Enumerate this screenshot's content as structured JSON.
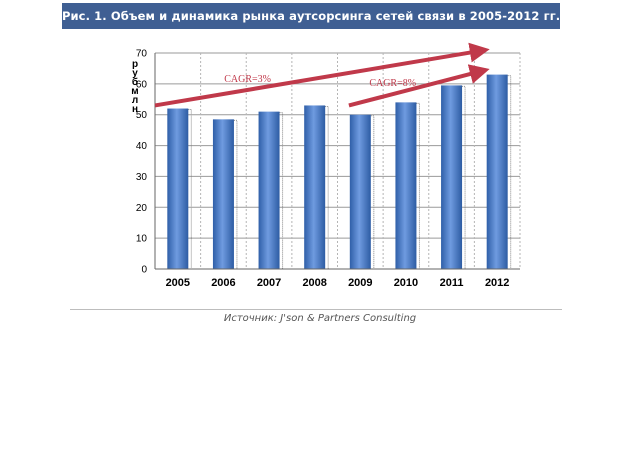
{
  "header": {
    "title": "Рис. 1. Объем и динамика рынка аутсорсинга сетей связи в 2005-2012 гг."
  },
  "source_text": "Источник: J'son & Partners Consulting",
  "chart_data": {
    "type": "bar",
    "categories": [
      "2005",
      "2006",
      "2007",
      "2008",
      "2009",
      "2010",
      "2011",
      "2012"
    ],
    "values": [
      52,
      48.5,
      51,
      53,
      50,
      54,
      59.5,
      63
    ],
    "ylabel": "руб млн",
    "ylim": [
      0,
      70
    ],
    "yticks": [
      0,
      10,
      20,
      30,
      40,
      50,
      60,
      70
    ],
    "grid": true,
    "annotations": [
      {
        "text": "CAGR=3%",
        "from": [
          "2005",
          53
        ],
        "to": [
          "2012",
          71
        ]
      },
      {
        "text": "CAGR=8%",
        "from": [
          "2009",
          53
        ],
        "to": [
          "2012",
          64.5
        ]
      }
    ],
    "colors": {
      "bar": "#3c72c2",
      "bar_light": "#6f9be0",
      "arrow": "#c0394a",
      "grid": "#9a9a9a"
    }
  }
}
